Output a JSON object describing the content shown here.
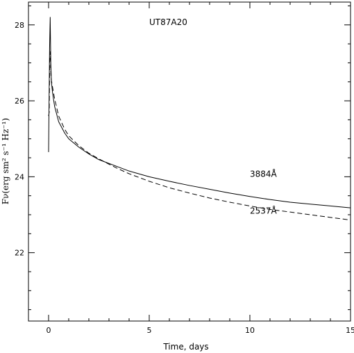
{
  "chart_data": {
    "type": "line",
    "title": "UT87A20",
    "xlabel": "Time, days",
    "ylabel": "Fν(erg sm² s⁻¹ Hz⁻¹)",
    "xlim": [
      -1,
      15
    ],
    "ylim": [
      20.2,
      28.6
    ],
    "xticks": [
      0,
      5,
      10,
      15
    ],
    "yticks": [
      22,
      24,
      26,
      28
    ],
    "grid": false,
    "series": [
      {
        "name": "3884Å",
        "style": "solid",
        "points": [
          [
            0.0,
            24.65
          ],
          [
            0.02,
            25.8
          ],
          [
            0.05,
            27.4
          ],
          [
            0.08,
            28.2
          ],
          [
            0.11,
            27.0
          ],
          [
            0.14,
            26.5
          ],
          [
            0.2,
            26.2
          ],
          [
            0.3,
            25.85
          ],
          [
            0.5,
            25.45
          ],
          [
            0.8,
            25.15
          ],
          [
            1.0,
            25.0
          ],
          [
            1.5,
            24.78
          ],
          [
            2.0,
            24.6
          ],
          [
            2.5,
            24.45
          ],
          [
            3.0,
            24.35
          ],
          [
            3.5,
            24.25
          ],
          [
            4.0,
            24.15
          ],
          [
            5.0,
            24.0
          ],
          [
            6.0,
            23.88
          ],
          [
            7.0,
            23.77
          ],
          [
            8.0,
            23.67
          ],
          [
            9.0,
            23.57
          ],
          [
            10.0,
            23.48
          ],
          [
            11.0,
            23.4
          ],
          [
            12.0,
            23.33
          ],
          [
            13.0,
            23.28
          ],
          [
            14.0,
            23.23
          ],
          [
            15.0,
            23.18
          ]
        ]
      },
      {
        "name": "2537Å",
        "style": "dashed",
        "points": [
          [
            0.0,
            25.6
          ],
          [
            0.03,
            25.7
          ],
          [
            0.06,
            27.0
          ],
          [
            0.09,
            27.3
          ],
          [
            0.12,
            26.6
          ],
          [
            0.2,
            26.35
          ],
          [
            0.3,
            26.05
          ],
          [
            0.5,
            25.6
          ],
          [
            0.8,
            25.25
          ],
          [
            1.0,
            25.08
          ],
          [
            1.5,
            24.82
          ],
          [
            2.0,
            24.62
          ],
          [
            2.5,
            24.47
          ],
          [
            3.0,
            24.33
          ],
          [
            3.5,
            24.2
          ],
          [
            4.0,
            24.08
          ],
          [
            5.0,
            23.88
          ],
          [
            6.0,
            23.71
          ],
          [
            7.0,
            23.57
          ],
          [
            8.0,
            23.44
          ],
          [
            9.0,
            23.33
          ],
          [
            10.0,
            23.23
          ],
          [
            11.0,
            23.14
          ],
          [
            12.0,
            23.07
          ],
          [
            13.0,
            23.0
          ],
          [
            14.0,
            22.93
          ],
          [
            15.0,
            22.86
          ]
        ]
      }
    ],
    "annotations": [
      {
        "text": "3884Å",
        "x": 10.0,
        "y": 24.0
      },
      {
        "text": "2537Å",
        "x": 10.0,
        "y": 23.03
      }
    ]
  }
}
